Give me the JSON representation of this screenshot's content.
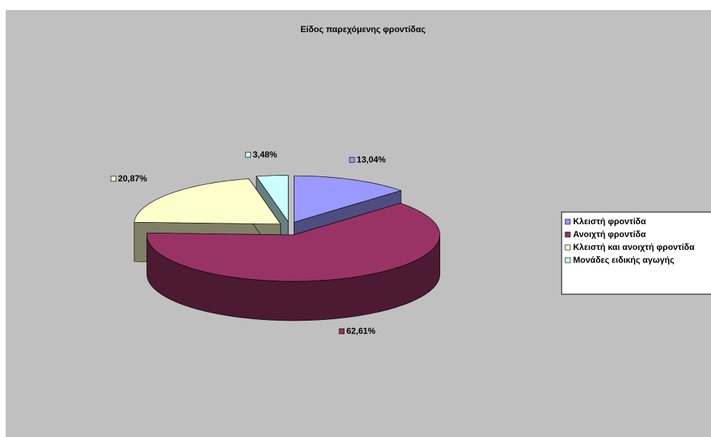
{
  "chart_data": {
    "type": "pie",
    "title": "Είδος παρεχόμενης φροντίδας",
    "categories": [
      "Κλειστή φροντίδα",
      "Ανοιχτή φροντίδα",
      "Κλειστή και ανοιχτή φροντίδα",
      "Μονάδες ειδικής αγωγής"
    ],
    "values": [
      13.04,
      62.61,
      20.87,
      3.48
    ],
    "value_labels": [
      "13,04%",
      "62,61%",
      "20,87%",
      "3,48%"
    ],
    "colors": [
      "#9999ff",
      "#993366",
      "#ffffcc",
      "#ccffff"
    ],
    "legend": "right"
  }
}
